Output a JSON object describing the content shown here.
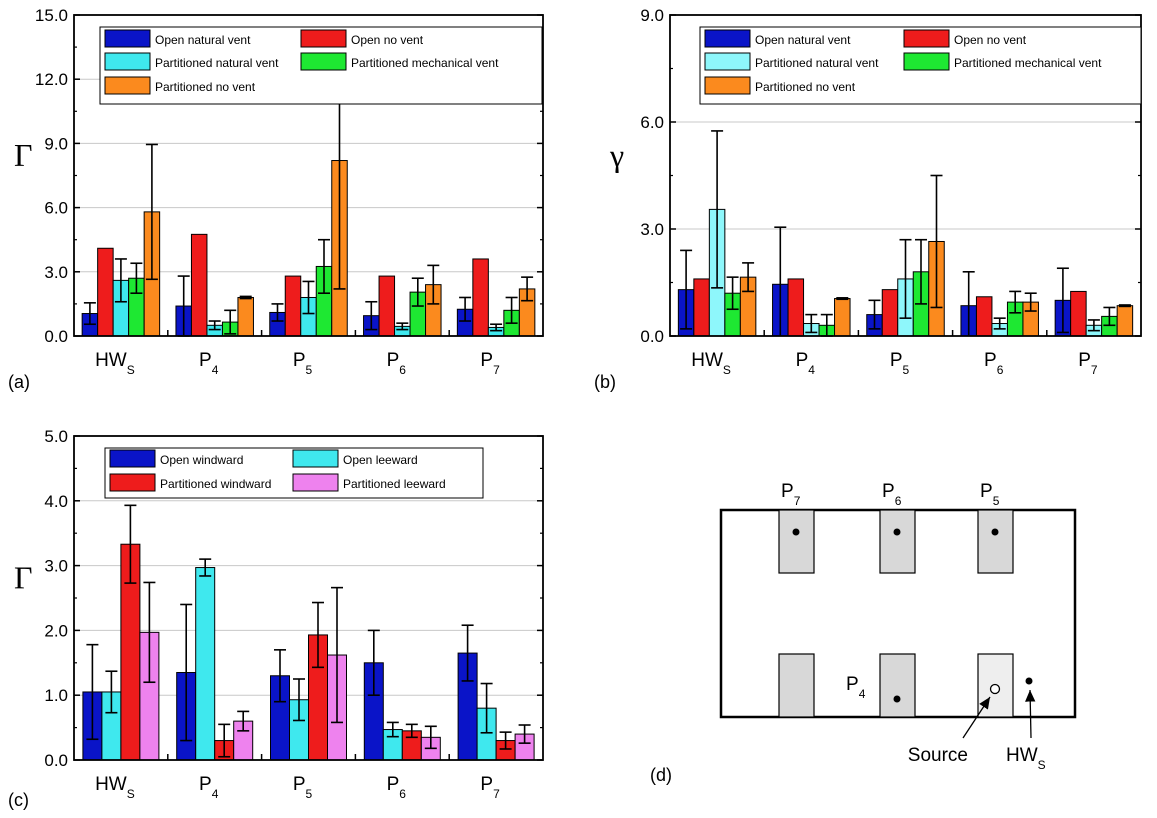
{
  "colors": {
    "open_natural": "#0a14c8",
    "open_no_vent": "#ee1c1c",
    "part_natural": "#3fe8ee",
    "part_natural_b": "#8ef7fb",
    "part_mech": "#1ee832",
    "part_no_vent": "#fb8a1e",
    "open_windward": "#0a14c8",
    "open_leeward": "#3fe8ee",
    "part_windward": "#ee1c1c",
    "part_leeward": "#ee82ee",
    "room_shade": "#d8d8d8",
    "source_shade": "#eeeeee"
  },
  "chart_data": [
    {
      "id": "a",
      "panel_label": "(a)",
      "type": "bar",
      "ylabel": "Γ",
      "ylim": [
        0,
        15
      ],
      "yticks": [
        "0.0",
        "3.0",
        "6.0",
        "9.0",
        "12.0",
        "15.0"
      ],
      "grid": true,
      "legend": "top-left, inside",
      "categories": [
        {
          "main": "HW",
          "sub": "S"
        },
        {
          "main": "P",
          "sub": "4"
        },
        {
          "main": "P",
          "sub": "5"
        },
        {
          "main": "P",
          "sub": "6"
        },
        {
          "main": "P",
          "sub": "7"
        }
      ],
      "series": [
        {
          "name": "Open natural vent",
          "color_key": "open_natural",
          "values": [
            1.05,
            1.4,
            1.1,
            0.95,
            1.25
          ],
          "errors": [
            0.5,
            1.4,
            0.4,
            0.65,
            0.55
          ]
        },
        {
          "name": "Open no vent",
          "color_key": "open_no_vent",
          "values": [
            4.1,
            4.75,
            2.8,
            2.8,
            3.6
          ],
          "errors": [
            0,
            0,
            0,
            0,
            0
          ]
        },
        {
          "name": "Partitioned natural vent",
          "color_key": "part_natural",
          "values": [
            2.6,
            0.5,
            1.8,
            0.45,
            0.4
          ],
          "errors": [
            1.0,
            0.2,
            0.75,
            0.15,
            0.15
          ]
        },
        {
          "name": "Partitioned mechanical vent",
          "color_key": "part_mech",
          "values": [
            2.7,
            0.65,
            3.25,
            2.05,
            1.2
          ],
          "errors": [
            0.7,
            0.55,
            1.25,
            0.65,
            0.6
          ]
        },
        {
          "name": "Partitioned no vent",
          "color_key": "part_no_vent",
          "values": [
            5.8,
            1.8,
            8.2,
            2.4,
            2.2
          ],
          "errors": [
            3.15,
            0.05,
            6.0,
            0.9,
            0.55
          ]
        }
      ]
    },
    {
      "id": "b",
      "panel_label": "(b)",
      "type": "bar",
      "ylabel": "γ",
      "ylim": [
        0,
        9
      ],
      "yticks": [
        "0.0",
        "3.0",
        "6.0",
        "9.0"
      ],
      "grid": true,
      "legend": "top-left, inside",
      "categories": [
        {
          "main": "HW",
          "sub": "S"
        },
        {
          "main": "P",
          "sub": "4"
        },
        {
          "main": "P",
          "sub": "5"
        },
        {
          "main": "P",
          "sub": "6"
        },
        {
          "main": "P",
          "sub": "7"
        }
      ],
      "series": [
        {
          "name": "Open natural vent",
          "color_key": "open_natural",
          "values": [
            1.3,
            1.45,
            0.6,
            0.85,
            1.0
          ],
          "errors": [
            1.1,
            1.6,
            0.4,
            0.95,
            0.9
          ]
        },
        {
          "name": "Open no vent",
          "color_key": "open_no_vent",
          "values": [
            1.6,
            1.6,
            1.3,
            1.1,
            1.25
          ],
          "errors": [
            0,
            0,
            0,
            0,
            0
          ]
        },
        {
          "name": "Partitioned natural vent",
          "color_key": "part_natural_b",
          "values": [
            3.55,
            0.35,
            1.6,
            0.35,
            0.3
          ],
          "errors": [
            2.2,
            0.25,
            1.1,
            0.15,
            0.15
          ]
        },
        {
          "name": "Partitioned mechanical vent",
          "color_key": "part_mech",
          "values": [
            1.2,
            0.3,
            1.8,
            0.95,
            0.55
          ],
          "errors": [
            0.45,
            0.3,
            0.9,
            0.3,
            0.25
          ]
        },
        {
          "name": "Partitioned no vent",
          "color_key": "part_no_vent",
          "values": [
            1.65,
            1.05,
            2.65,
            0.95,
            0.85
          ],
          "errors": [
            0.4,
            0.02,
            1.85,
            0.25,
            0.02
          ]
        }
      ]
    },
    {
      "id": "c",
      "panel_label": "(c)",
      "type": "bar",
      "ylabel": "Γ",
      "ylim": [
        0,
        5
      ],
      "yticks": [
        "0.0",
        "1.0",
        "2.0",
        "3.0",
        "4.0",
        "5.0"
      ],
      "grid": true,
      "legend": "top-left, inside",
      "categories": [
        {
          "main": "HW",
          "sub": "S"
        },
        {
          "main": "P",
          "sub": "4"
        },
        {
          "main": "P",
          "sub": "5"
        },
        {
          "main": "P",
          "sub": "6"
        },
        {
          "main": "P",
          "sub": "7"
        }
      ],
      "series": [
        {
          "name": "Open windward",
          "color_key": "open_windward",
          "values": [
            1.05,
            1.35,
            1.3,
            1.5,
            1.65
          ],
          "errors": [
            0.73,
            1.05,
            0.4,
            0.5,
            0.43
          ]
        },
        {
          "name": "Open leeward",
          "color_key": "open_leeward",
          "values": [
            1.05,
            2.97,
            0.93,
            0.47,
            0.8
          ],
          "errors": [
            0.32,
            0.13,
            0.32,
            0.11,
            0.38
          ]
        },
        {
          "name": "Partitioned windward",
          "color_key": "part_windward",
          "values": [
            3.33,
            0.3,
            1.93,
            0.45,
            0.3
          ],
          "errors": [
            0.6,
            0.25,
            0.5,
            0.1,
            0.13
          ]
        },
        {
          "name": "Partitioned leeward",
          "color_key": "part_leeward",
          "values": [
            1.97,
            0.6,
            1.62,
            0.35,
            0.4
          ],
          "errors": [
            0.77,
            0.15,
            1.04,
            0.17,
            0.14
          ]
        }
      ]
    }
  ],
  "diagram": {
    "panel_label": "(d)",
    "top_labels": [
      {
        "main": "P",
        "sub": "7"
      },
      {
        "main": "P",
        "sub": "6"
      },
      {
        "main": "P",
        "sub": "5"
      }
    ],
    "p4_label": {
      "main": "P",
      "sub": "4"
    },
    "source_label": "Source",
    "hws_label": {
      "main": "HW",
      "sub": "S"
    }
  }
}
